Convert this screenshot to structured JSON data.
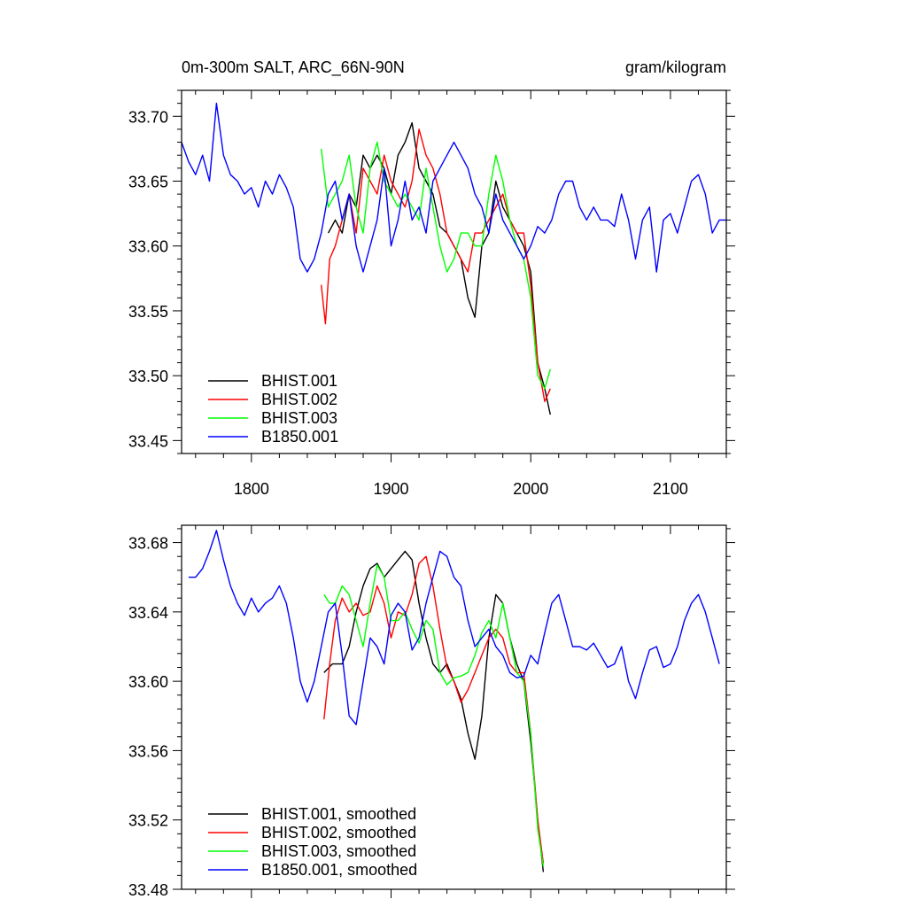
{
  "chart_data": [
    {
      "type": "line",
      "title_left": "0m-300m SALT, ARC_66N-90N",
      "title_right": "gram/kilogram",
      "xlim": [
        1750,
        2140
      ],
      "ylim": [
        33.44,
        33.72
      ],
      "xticks": [
        1800,
        1900,
        2000,
        2100
      ],
      "xtick_labels": [
        "1800",
        "1900",
        "2000",
        "2100"
      ],
      "yticks": [
        33.45,
        33.5,
        33.55,
        33.6,
        33.65,
        33.7
      ],
      "ytick_labels": [
        "33.45",
        "33.50",
        "33.55",
        "33.60",
        "33.65",
        "33.70"
      ],
      "legend_position": "bottom-left",
      "series": [
        {
          "name": "BHIST.001",
          "color": "#000000",
          "x": [
            1855,
            1860,
            1865,
            1870,
            1875,
            1880,
            1885,
            1890,
            1895,
            1900,
            1905,
            1910,
            1915,
            1920,
            1925,
            1930,
            1935,
            1940,
            1945,
            1950,
            1955,
            1960,
            1965,
            1970,
            1975,
            1980,
            1985,
            1990,
            1995,
            2000,
            2005,
            2010,
            2014
          ],
          "y": [
            33.61,
            33.62,
            33.61,
            33.64,
            33.63,
            33.67,
            33.66,
            33.67,
            33.66,
            33.64,
            33.67,
            33.68,
            33.695,
            33.66,
            33.65,
            33.64,
            33.615,
            33.61,
            33.6,
            33.59,
            33.56,
            33.545,
            33.6,
            33.61,
            33.65,
            33.63,
            33.62,
            33.61,
            33.6,
            33.58,
            33.51,
            33.49,
            33.47
          ]
        },
        {
          "name": "BHIST.002",
          "color": "#ff0000",
          "x": [
            1850,
            1853,
            1856,
            1860,
            1865,
            1870,
            1875,
            1880,
            1885,
            1890,
            1895,
            1900,
            1905,
            1910,
            1915,
            1920,
            1925,
            1930,
            1935,
            1940,
            1945,
            1950,
            1955,
            1960,
            1965,
            1970,
            1975,
            1980,
            1985,
            1990,
            1995,
            2000,
            2005,
            2010,
            2014
          ],
          "y": [
            33.57,
            33.54,
            33.59,
            33.6,
            33.62,
            33.64,
            33.61,
            33.66,
            33.65,
            33.64,
            33.67,
            33.65,
            33.64,
            33.63,
            33.65,
            33.69,
            33.67,
            33.66,
            33.64,
            33.61,
            33.6,
            33.59,
            33.58,
            33.61,
            33.61,
            33.62,
            33.63,
            33.64,
            33.62,
            33.61,
            33.61,
            33.57,
            33.51,
            33.48,
            33.49
          ]
        },
        {
          "name": "BHIST.003",
          "color": "#00ff00",
          "x": [
            1850,
            1855,
            1860,
            1865,
            1870,
            1875,
            1880,
            1885,
            1890,
            1895,
            1900,
            1905,
            1910,
            1915,
            1920,
            1925,
            1930,
            1935,
            1940,
            1945,
            1950,
            1955,
            1960,
            1965,
            1970,
            1975,
            1980,
            1985,
            1990,
            1995,
            2000,
            2005,
            2010,
            2014
          ],
          "y": [
            33.675,
            33.63,
            33.64,
            33.65,
            33.67,
            33.63,
            33.61,
            33.66,
            33.68,
            33.65,
            33.64,
            33.63,
            33.64,
            33.63,
            33.62,
            33.66,
            33.63,
            33.6,
            33.58,
            33.59,
            33.61,
            33.61,
            33.6,
            33.6,
            33.64,
            33.67,
            33.65,
            33.62,
            33.6,
            33.59,
            33.56,
            33.5,
            33.49,
            33.505
          ]
        },
        {
          "name": "B1850.001",
          "color": "#0000ff",
          "x": [
            1750,
            1755,
            1760,
            1765,
            1770,
            1775,
            1780,
            1785,
            1790,
            1795,
            1800,
            1805,
            1810,
            1815,
            1820,
            1825,
            1830,
            1835,
            1840,
            1845,
            1850,
            1855,
            1860,
            1865,
            1870,
            1875,
            1880,
            1885,
            1890,
            1895,
            1900,
            1905,
            1910,
            1915,
            1920,
            1925,
            1930,
            1935,
            1940,
            1945,
            1950,
            1955,
            1960,
            1965,
            1970,
            1975,
            1980,
            1985,
            1990,
            1995,
            2000,
            2005,
            2010,
            2015,
            2020,
            2025,
            2030,
            2035,
            2040,
            2045,
            2050,
            2055,
            2060,
            2065,
            2070,
            2075,
            2080,
            2085,
            2090,
            2095,
            2100,
            2105,
            2110,
            2115,
            2120,
            2125,
            2130,
            2135,
            2140
          ],
          "y": [
            33.68,
            33.665,
            33.655,
            33.67,
            33.65,
            33.71,
            33.67,
            33.655,
            33.65,
            33.64,
            33.645,
            33.63,
            33.65,
            33.64,
            33.655,
            33.645,
            33.63,
            33.59,
            33.58,
            33.59,
            33.61,
            33.64,
            33.65,
            33.62,
            33.64,
            33.6,
            33.58,
            33.6,
            33.62,
            33.66,
            33.6,
            33.62,
            33.65,
            33.62,
            33.63,
            33.61,
            33.65,
            33.66,
            33.67,
            33.68,
            33.67,
            33.66,
            33.64,
            33.63,
            33.61,
            33.64,
            33.62,
            33.61,
            33.6,
            33.59,
            33.6,
            33.615,
            33.61,
            33.62,
            33.64,
            33.65,
            33.65,
            33.63,
            33.62,
            33.63,
            33.62,
            33.62,
            33.615,
            33.64,
            33.62,
            33.59,
            33.62,
            33.63,
            33.58,
            33.62,
            33.625,
            33.61,
            33.63,
            33.65,
            33.655,
            33.64,
            33.61,
            33.62,
            33.62
          ]
        }
      ]
    },
    {
      "type": "line",
      "xlim": [
        1750,
        2140
      ],
      "ylim": [
        33.48,
        33.69
      ],
      "xticks": [
        1800,
        1900,
        2000,
        2100
      ],
      "yticks": [
        33.48,
        33.52,
        33.56,
        33.6,
        33.64,
        33.68
      ],
      "ytick_labels": [
        "33.48",
        "33.52",
        "33.56",
        "33.60",
        "33.64",
        "33.68"
      ],
      "legend_position": "bottom-left",
      "series": [
        {
          "name": "BHIST.001, smoothed",
          "color": "#000000",
          "x": [
            1852,
            1858,
            1865,
            1870,
            1875,
            1880,
            1885,
            1890,
            1895,
            1900,
            1905,
            1910,
            1915,
            1920,
            1925,
            1930,
            1935,
            1940,
            1945,
            1950,
            1955,
            1960,
            1965,
            1970,
            1975,
            1980,
            1985,
            1990,
            1995,
            2000,
            2005,
            2009
          ],
          "y": [
            33.605,
            33.61,
            33.61,
            33.62,
            33.64,
            33.655,
            33.665,
            33.668,
            33.66,
            33.665,
            33.67,
            33.675,
            33.67,
            33.645,
            33.625,
            33.61,
            33.605,
            33.61,
            33.6,
            33.59,
            33.57,
            33.555,
            33.58,
            33.625,
            33.65,
            33.645,
            33.625,
            33.61,
            33.6,
            33.565,
            33.52,
            33.49
          ]
        },
        {
          "name": "BHIST.002, smoothed",
          "color": "#ff0000",
          "x": [
            1852,
            1856,
            1860,
            1865,
            1870,
            1875,
            1880,
            1885,
            1890,
            1895,
            1900,
            1905,
            1910,
            1915,
            1920,
            1925,
            1930,
            1935,
            1940,
            1945,
            1950,
            1955,
            1960,
            1965,
            1970,
            1975,
            1980,
            1985,
            1990,
            1995,
            2000,
            2005,
            2009
          ],
          "y": [
            33.578,
            33.61,
            33.635,
            33.648,
            33.64,
            33.645,
            33.638,
            33.64,
            33.655,
            33.645,
            33.625,
            33.64,
            33.638,
            33.65,
            33.668,
            33.672,
            33.655,
            33.63,
            33.608,
            33.6,
            33.588,
            33.595,
            33.605,
            33.615,
            33.625,
            33.63,
            33.625,
            33.61,
            33.605,
            33.605,
            33.57,
            33.52,
            33.495
          ]
        },
        {
          "name": "BHIST.003, smoothed",
          "color": "#00ff00",
          "x": [
            1852,
            1856,
            1860,
            1865,
            1870,
            1875,
            1880,
            1885,
            1890,
            1895,
            1900,
            1905,
            1910,
            1915,
            1920,
            1925,
            1930,
            1935,
            1940,
            1945,
            1950,
            1955,
            1960,
            1965,
            1970,
            1975,
            1980,
            1985,
            1990,
            1995,
            2000,
            2005,
            2009
          ],
          "y": [
            33.65,
            33.645,
            33.645,
            33.655,
            33.65,
            33.635,
            33.62,
            33.645,
            33.667,
            33.66,
            33.635,
            33.635,
            33.64,
            33.63,
            33.622,
            33.635,
            33.63,
            33.605,
            33.598,
            33.602,
            33.603,
            33.605,
            33.615,
            33.628,
            33.635,
            33.625,
            33.645,
            33.625,
            33.605,
            33.6,
            33.57,
            33.515,
            33.493
          ]
        },
        {
          "name": "B1850.001, smoothed",
          "color": "#0000ff",
          "x": [
            1755,
            1760,
            1765,
            1770,
            1775,
            1780,
            1785,
            1790,
            1795,
            1800,
            1805,
            1810,
            1815,
            1820,
            1825,
            1830,
            1835,
            1840,
            1845,
            1850,
            1855,
            1860,
            1865,
            1870,
            1875,
            1880,
            1885,
            1890,
            1895,
            1900,
            1905,
            1910,
            1915,
            1920,
            1925,
            1930,
            1935,
            1940,
            1945,
            1950,
            1955,
            1960,
            1965,
            1970,
            1975,
            1980,
            1985,
            1990,
            1995,
            2000,
            2005,
            2010,
            2015,
            2020,
            2025,
            2030,
            2035,
            2040,
            2045,
            2050,
            2055,
            2060,
            2065,
            2070,
            2075,
            2080,
            2085,
            2090,
            2095,
            2100,
            2105,
            2110,
            2115,
            2120,
            2125,
            2130,
            2135
          ],
          "y": [
            33.66,
            33.66,
            33.665,
            33.675,
            33.687,
            33.67,
            33.655,
            33.645,
            33.638,
            33.648,
            33.64,
            33.645,
            33.648,
            33.655,
            33.645,
            33.625,
            33.6,
            33.588,
            33.6,
            33.62,
            33.64,
            33.645,
            33.615,
            33.58,
            33.575,
            33.6,
            33.625,
            33.62,
            33.61,
            33.638,
            33.645,
            33.64,
            33.618,
            33.625,
            33.645,
            33.66,
            33.675,
            33.672,
            33.66,
            33.655,
            33.635,
            33.62,
            33.625,
            33.63,
            33.62,
            33.615,
            33.605,
            33.602,
            33.603,
            33.615,
            33.61,
            33.628,
            33.645,
            33.65,
            33.635,
            33.62,
            33.62,
            33.618,
            33.622,
            33.615,
            33.608,
            33.61,
            33.62,
            33.6,
            33.59,
            33.605,
            33.618,
            33.62,
            33.608,
            33.61,
            33.62,
            33.635,
            33.645,
            33.65,
            33.64,
            33.625,
            33.61
          ]
        }
      ]
    }
  ]
}
